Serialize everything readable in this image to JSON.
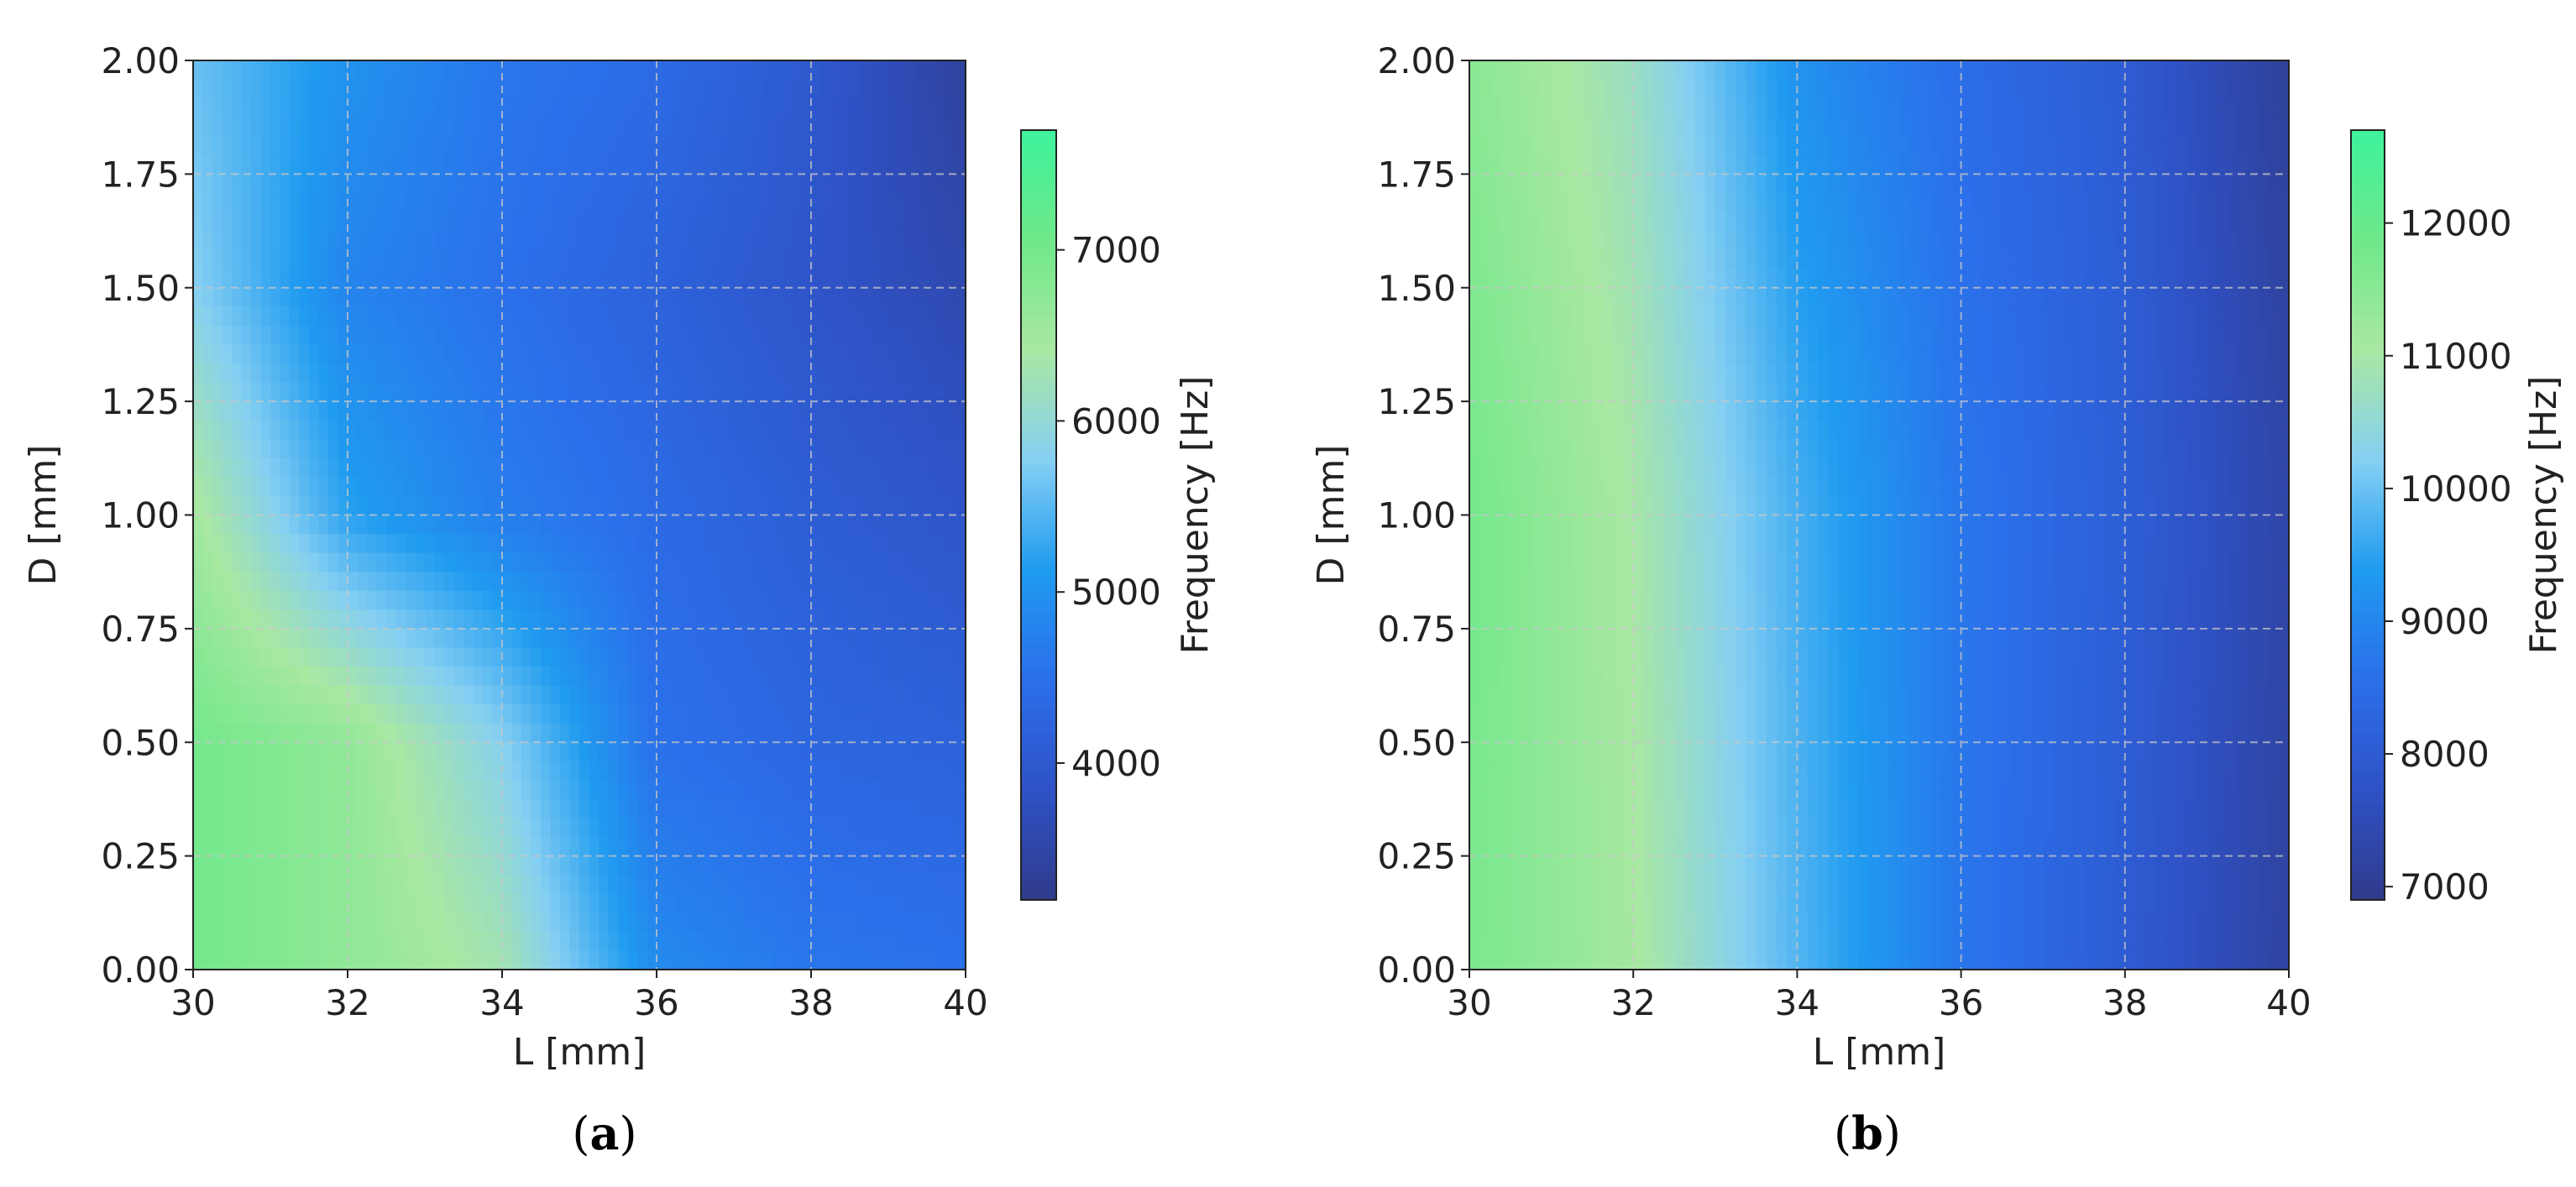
{
  "chart_data": [
    {
      "type": "heatmap",
      "caption_open": "(",
      "caption_letter": "a",
      "caption_close": ")",
      "xlabel": "L [mm]",
      "ylabel": "D [mm]",
      "xlim": [
        30,
        40
      ],
      "ylim": [
        0,
        2
      ],
      "xticks": [
        "30",
        "32",
        "34",
        "36",
        "38",
        "40"
      ],
      "yticks": [
        "0.00",
        "0.25",
        "0.50",
        "0.75",
        "1.00",
        "1.25",
        "1.50",
        "1.75",
        "2.00"
      ],
      "grid": true,
      "colorbar": {
        "label": "Frequency [Hz]",
        "range": [
          3200,
          7700
        ],
        "ticks": [
          "4000",
          "5000",
          "6000",
          "7000"
        ],
        "tick_values": [
          4000,
          5000,
          6000,
          7000
        ]
      },
      "x": [
        30,
        32,
        34,
        36,
        38,
        40
      ],
      "y": [
        0,
        0.5,
        1,
        1.5,
        2
      ],
      "z": [
        [
          7000,
          6700,
          6300,
          4900,
          4600,
          4500
        ],
        [
          7000,
          6700,
          5800,
          4500,
          4300,
          4200
        ],
        [
          6500,
          5200,
          4700,
          4400,
          4100,
          3900
        ],
        [
          5800,
          4800,
          4500,
          4200,
          3900,
          3600
        ],
        [
          5600,
          5000,
          4600,
          4400,
          4000,
          3400
        ]
      ]
    },
    {
      "type": "heatmap",
      "caption_open": "(",
      "caption_letter": "b",
      "caption_close": ")",
      "xlabel": "L [mm]",
      "ylabel": "D [mm]",
      "xlim": [
        30,
        40
      ],
      "ylim": [
        0,
        2
      ],
      "xticks": [
        "30",
        "32",
        "34",
        "36",
        "38",
        "40"
      ],
      "yticks": [
        "0.00",
        "0.25",
        "0.50",
        "0.75",
        "1.00",
        "1.25",
        "1.50",
        "1.75",
        "2.00"
      ],
      "grid": true,
      "colorbar": {
        "label": "Frequency [Hz]",
        "range": [
          6900,
          12700
        ],
        "ticks": [
          "7000",
          "8000",
          "9000",
          "10000",
          "11000",
          "12000"
        ],
        "tick_values": [
          7000,
          8000,
          9000,
          10000,
          11000,
          12000
        ]
      },
      "x": [
        30,
        32,
        34,
        36,
        38,
        40
      ],
      "y": [
        0,
        1,
        2
      ],
      "z": [
        [
          11700,
          11100,
          9800,
          8700,
          8000,
          7200
        ],
        [
          11800,
          11000,
          9700,
          8700,
          8100,
          7300
        ],
        [
          11500,
          10700,
          9200,
          8500,
          8000,
          7100
        ]
      ]
    }
  ],
  "colors": {
    "colormap": [
      "#2f3b8a",
      "#2f52c6",
      "#2b6fea",
      "#1f9bf0",
      "#85cff2",
      "#a9e8a2",
      "#6fe88a",
      "#3ef29c"
    ],
    "grid": "#c8c8c8"
  }
}
